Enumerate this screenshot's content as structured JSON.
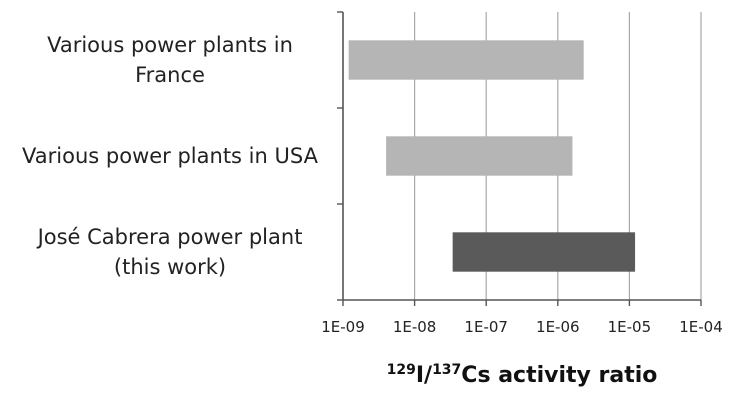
{
  "chart_data": {
    "type": "bar",
    "orientation": "horizontal",
    "floating": true,
    "x_scale": "log",
    "categories": [
      [
        "Various power plants in",
        "France"
      ],
      [
        "Various power plants in USA"
      ],
      [
        "José Cabrera power plant",
        "(this work)"
      ]
    ],
    "ranges": [
      {
        "min": 1.2e-09,
        "max": 2.3e-06,
        "color": "#b5b5b5"
      },
      {
        "min": 4e-09,
        "max": 1.6e-06,
        "color": "#b5b5b5"
      },
      {
        "min": 3.4e-08,
        "max": 1.2e-05,
        "color": "#5a5a5a"
      }
    ],
    "xlim": [
      1e-09,
      0.0001
    ],
    "x_ticks": [
      "1E-09",
      "1E-08",
      "1E-07",
      "1E-06",
      "1E-05",
      "1E-04"
    ],
    "xlabel": {
      "iso1_mass": "129",
      "iso1_sym": "I/",
      "iso2_mass": "137",
      "iso2_sym": "Cs activity ratio"
    },
    "grid": {
      "vertical": true
    }
  }
}
